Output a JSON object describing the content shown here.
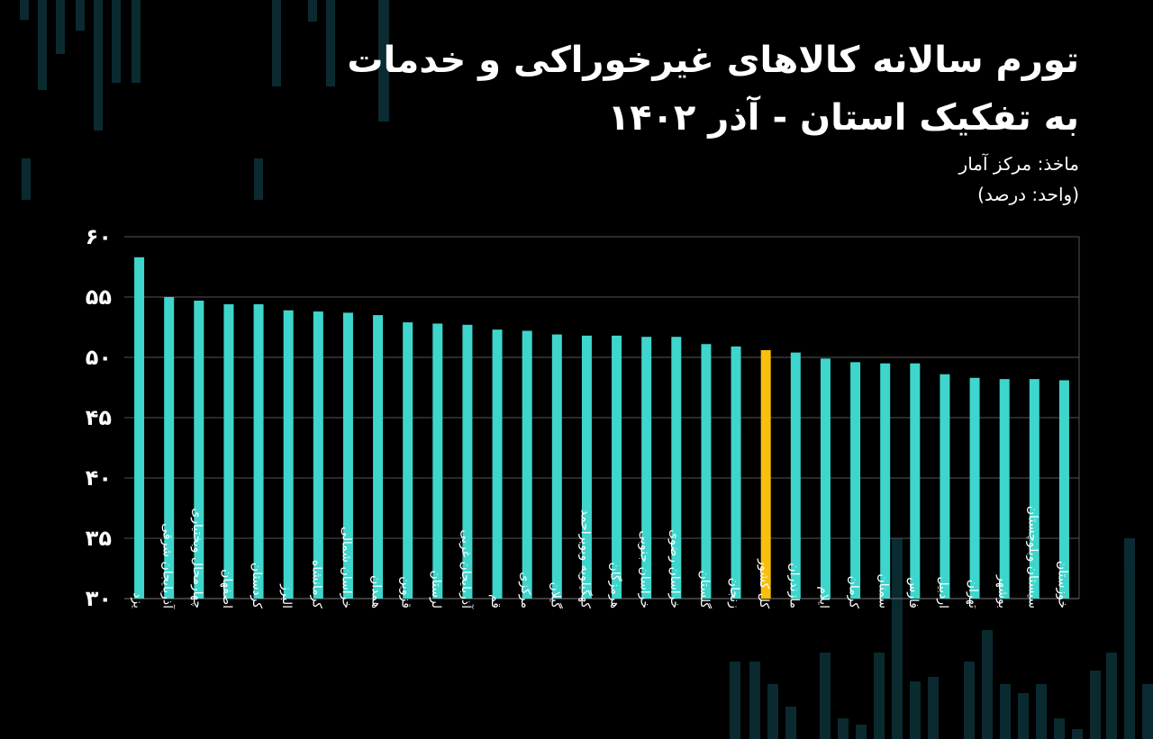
{
  "header": {
    "title_line1": "تورم سالانه کالاهای غیرخوراکی و خدمات",
    "title_line2": "به تفکیک استان - آذر ۱۴۰۲",
    "source": "ماخذ: مرکز آمار",
    "unit": "(واحد: درصد)"
  },
  "colors": {
    "bar": "#3ed6cc",
    "highlight": "#f8bf0c",
    "background": "#000000",
    "grid": "#555555",
    "background_bars": "#0c2f36"
  },
  "chart_data": {
    "type": "bar",
    "categories": [
      "یزد",
      "آذربایجان شرقی",
      "چهارمحال وبختیاری",
      "اصفهان",
      "کردستان",
      "البرز",
      "کرمانشاه",
      "خراسان شمالی",
      "همدان",
      "قزوین",
      "لرستان",
      "آذربایجان غربی",
      "قم",
      "مرکزی",
      "گیلان",
      "کهگیلویه وبویراحمد",
      "هرمزگان",
      "خراسان جنوبی",
      "خراسان رضوی",
      "گلستان",
      "زنجان",
      "کل کشور",
      "مازندران",
      "ایلام",
      "کرمان",
      "سمنان",
      "فارس",
      "اردبیل",
      "تهران",
      "بوشهر",
      "سیستان وبلوچستان",
      "خوزستان"
    ],
    "values": [
      58.3,
      55.0,
      54.7,
      54.4,
      54.4,
      53.9,
      53.8,
      53.7,
      53.5,
      52.9,
      52.8,
      52.7,
      52.3,
      52.2,
      51.9,
      51.8,
      51.8,
      51.7,
      51.7,
      51.1,
      50.9,
      50.6,
      50.4,
      49.9,
      49.6,
      49.5,
      49.5,
      48.6,
      48.3,
      48.2,
      48.2,
      48.1
    ],
    "highlight_category": "کل کشور",
    "ylim": [
      30,
      60
    ],
    "yticks": [
      "۳۰",
      "۳۵",
      "۴۰",
      "۴۵",
      "۵۰",
      "۵۵",
      "۶۰"
    ],
    "grid": true
  }
}
